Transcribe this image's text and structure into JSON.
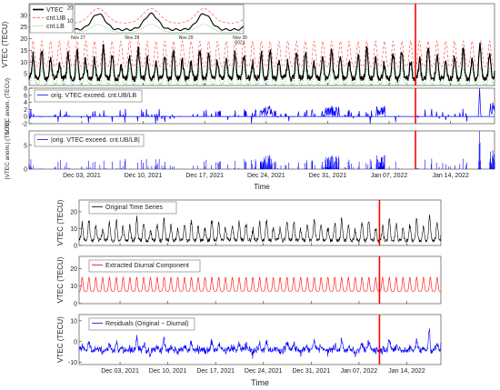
{
  "time_axis": {
    "start": "2021-11-27",
    "end": "2022-01-19",
    "tick_dates": [
      "2021-12-03",
      "2021-12-10",
      "2021-12-17",
      "2021-12-24",
      "2021-12-31",
      "2022-01-07",
      "2022-01-14"
    ],
    "tick_labels": [
      "Dec 03, 2021",
      "Dec 10, 2021",
      "Dec 17, 2021",
      "Dec 24, 2021",
      "Dec 31, 2021",
      "Jan 07, 2022",
      "Jan 14, 2022"
    ],
    "xlabel": "Time",
    "event_marker_date": "2022-01-10"
  },
  "colors": {
    "vtec": "#000000",
    "bound": "#ff3b3b",
    "lower": "#22bb22",
    "anomaly": "#0000ff",
    "event_line": "#ff0000",
    "original": "#000000",
    "diurnal": "#ff0000",
    "residual": "#0000ff"
  },
  "chart_data": [
    {
      "type": "line",
      "panel": "vtec-bounds",
      "ylabel": "VTEC (TECU)",
      "ylim": [
        0,
        35
      ],
      "yticks": [
        5,
        10,
        15,
        20,
        25,
        30
      ],
      "legend": [
        "VTEC",
        "cnt.UB",
        "cnt.LB"
      ],
      "legend_placement": "top-left",
      "series": [
        {
          "name": "VTEC",
          "values": "daily diurnal cycle, troughs ~3, peaks 10-20, spike 27 near Jan 17 and 21 near Jan 19"
        },
        {
          "name": "cnt.UB",
          "values": "dashed, oscillating ~8 to 19"
        },
        {
          "name": "cnt.LB",
          "values": "dotted, oscillating ~0 to 8"
        }
      ],
      "inset": {
        "ylim": [
          0,
          22
        ],
        "yticks": [
          10,
          20
        ],
        "tick_labels": [
          "Nov 27",
          "Nov 28",
          "Nov 29",
          "Nov 30\n2021"
        ]
      }
    },
    {
      "type": "line",
      "panel": "anomaly-line",
      "ylabel": "VTEC anom. (TECU)",
      "ylim": [
        -2,
        8
      ],
      "yticks": [
        -2,
        0,
        2,
        4,
        6,
        8
      ],
      "legend": [
        "orig. VTEC exceed. cnt.UB/LB"
      ],
      "legend_placement": "top-left",
      "series": [
        {
          "name": "orig. VTEC exceed. cnt.UB/LB",
          "values": "sparse spikes mostly 0.5-3, peaks ~3 near Dec 24/Dec 31, ~8 near Jan 17"
        }
      ]
    },
    {
      "type": "bar",
      "panel": "anomaly-abs",
      "ylabel": "|VTEC anom.| (TECU)",
      "ylim": [
        0,
        8
      ],
      "yticks": [
        0,
        5
      ],
      "legend": [
        "|orig. VTEC exceed. cnt.UB/LB|"
      ],
      "legend_placement": "top-left",
      "series": [
        {
          "name": "|orig. VTEC exceed. cnt.UB/LB|",
          "values": "absolute anomaly spikes, max ~8 near Jan 17"
        }
      ]
    },
    {
      "type": "line",
      "panel": "original",
      "ylabel": "VTEC (TECU)",
      "ylim": [
        0,
        27
      ],
      "yticks": [
        0,
        10,
        20
      ],
      "legend": [
        "Original Time Series"
      ],
      "legend_placement": "top-left",
      "series": [
        {
          "name": "Original Time Series",
          "values": "daily cycle, range ~3-20, spike ~26 near Jan 17"
        }
      ]
    },
    {
      "type": "line",
      "panel": "diurnal",
      "ylabel": "VTEC (TECU)",
      "ylim": [
        0,
        27
      ],
      "yticks": [
        0,
        10,
        20
      ],
      "legend": [
        "Extracted Diurnal Component"
      ],
      "legend_placement": "top-left",
      "series": [
        {
          "name": "Extracted Diurnal Component",
          "values": "regular daily oscillation between ~7 and ~15"
        }
      ]
    },
    {
      "type": "line",
      "panel": "residuals",
      "ylabel": "VTEC (TECU)",
      "ylim": [
        -11,
        13
      ],
      "yticks": [
        -10,
        0,
        10
      ],
      "legend": [
        "Residuals (Original − Diurnal)"
      ],
      "legend_placement": "top-left",
      "series": [
        {
          "name": "Residuals (Original − Diurnal)",
          "values": "noise around 0, range ~-8 to +5, spike ~12 near Jan 17"
        }
      ]
    }
  ]
}
